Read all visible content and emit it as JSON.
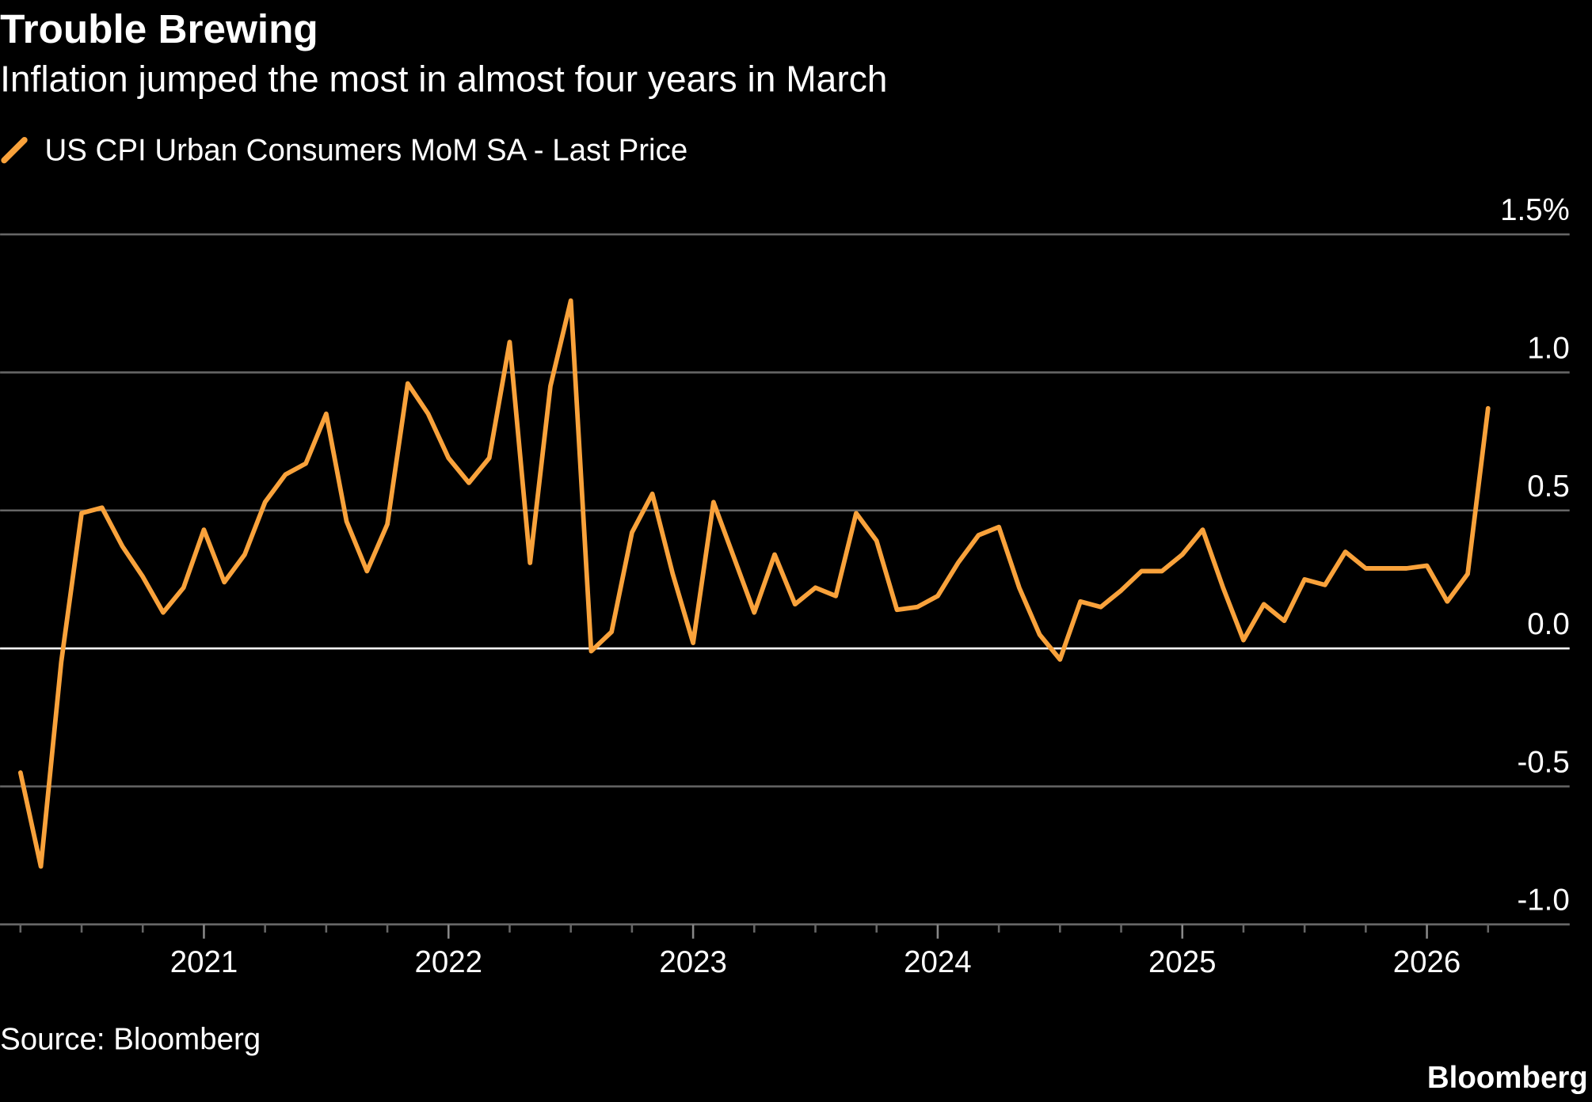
{
  "chart_data": {
    "type": "line",
    "title": "Trouble Brewing",
    "subtitle": "Inflation jumped the most in almost four years in March",
    "source": "Source: Bloomberg",
    "brand": "Bloomberg",
    "x": [
      "2020-03",
      "2020-04",
      "2020-05",
      "2020-06",
      "2020-07",
      "2020-08",
      "2020-09",
      "2020-10",
      "2020-11",
      "2020-12",
      "2021-01",
      "2021-02",
      "2021-03",
      "2021-04",
      "2021-05",
      "2021-06",
      "2021-07",
      "2021-08",
      "2021-09",
      "2021-10",
      "2021-11",
      "2021-12",
      "2022-01",
      "2022-02",
      "2022-03",
      "2022-04",
      "2022-05",
      "2022-06",
      "2022-07",
      "2022-08",
      "2022-09",
      "2022-10",
      "2022-11",
      "2022-12",
      "2023-01",
      "2023-02",
      "2023-03",
      "2023-04",
      "2023-05",
      "2023-06",
      "2023-07",
      "2023-08",
      "2023-09",
      "2023-10",
      "2023-11",
      "2023-12",
      "2024-01",
      "2024-02",
      "2024-03",
      "2024-04",
      "2024-05",
      "2024-06",
      "2024-07",
      "2024-08",
      "2024-09",
      "2024-10",
      "2024-11",
      "2024-12",
      "2025-01",
      "2025-02",
      "2025-03",
      "2025-04",
      "2025-05",
      "2025-06",
      "2025-07",
      "2025-08",
      "2025-09",
      "2025-10",
      "2025-11",
      "2025-12",
      "2026-01",
      "2026-02",
      "2026-03"
    ],
    "series": [
      {
        "name": "US CPI Urban Consumers MoM SA - Last Price",
        "color": "#f9a23b",
        "values": [
          -0.45,
          -0.79,
          -0.05,
          0.49,
          0.51,
          0.37,
          0.26,
          0.13,
          0.22,
          0.43,
          0.24,
          0.34,
          0.53,
          0.63,
          0.67,
          0.85,
          0.46,
          0.28,
          0.45,
          0.96,
          0.85,
          0.69,
          0.6,
          0.69,
          1.11,
          0.31,
          0.95,
          1.26,
          -0.01,
          0.06,
          0.42,
          0.56,
          0.27,
          0.02,
          0.53,
          0.33,
          0.13,
          0.34,
          0.16,
          0.22,
          0.19,
          0.49,
          0.39,
          0.14,
          0.15,
          0.19,
          0.31,
          0.41,
          0.44,
          0.22,
          0.05,
          -0.04,
          0.17,
          0.15,
          0.21,
          0.28,
          0.28,
          0.34,
          0.43,
          0.22,
          0.03,
          0.16,
          0.1,
          0.25,
          0.23,
          0.35,
          0.29,
          0.29,
          0.29,
          0.3,
          0.17,
          0.27,
          0.87
        ]
      }
    ],
    "xlim": [
      "2020-02",
      "2026-07"
    ],
    "xticks": [
      "2021",
      "2022",
      "2023",
      "2024",
      "2025",
      "2026"
    ],
    "ylim": [
      -1,
      1.5
    ],
    "yticks": [
      {
        "value": 1.5,
        "label": "1.5%"
      },
      {
        "value": 1,
        "label": "1.0"
      },
      0.5,
      {
        "value": 0,
        "label": "0.0"
      },
      -0.5,
      {
        "value": -1,
        "label": "-1.0"
      }
    ],
    "grid": true
  }
}
